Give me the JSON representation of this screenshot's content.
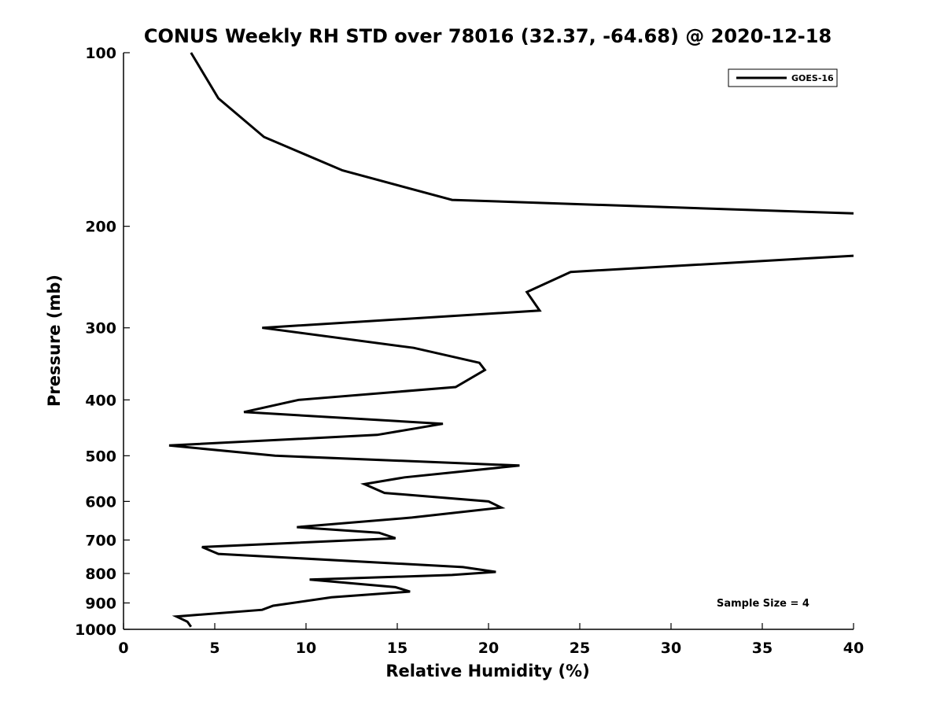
{
  "chart_data": {
    "type": "line",
    "title": "CONUS Weekly RH STD over 78016 (32.37, -64.68) @ 2020-12-18",
    "xlabel": "Relative Humidity (%)",
    "ylabel": "Pressure (mb)",
    "xlim": [
      0,
      40
    ],
    "ylim": [
      100,
      1000
    ],
    "y_scale": "log",
    "y_reversed": true,
    "grid": false,
    "legend_position": "top-right",
    "x_ticks": [
      {
        "value": 0,
        "label": "0"
      },
      {
        "value": 5,
        "label": "5"
      },
      {
        "value": 10,
        "label": "10"
      },
      {
        "value": 15,
        "label": "15"
      },
      {
        "value": 20,
        "label": "20"
      },
      {
        "value": 25,
        "label": "25"
      },
      {
        "value": 30,
        "label": "30"
      },
      {
        "value": 35,
        "label": "35"
      },
      {
        "value": 40,
        "label": "40"
      }
    ],
    "y_ticks": [
      {
        "value": 100,
        "label": "100"
      },
      {
        "value": 200,
        "label": "200"
      },
      {
        "value": 300,
        "label": "300"
      },
      {
        "value": 400,
        "label": "400"
      },
      {
        "value": 500,
        "label": "500"
      },
      {
        "value": 600,
        "label": "600"
      },
      {
        "value": 700,
        "label": "700"
      },
      {
        "value": 800,
        "label": "800"
      },
      {
        "value": 900,
        "label": "900"
      },
      {
        "value": 1000,
        "label": "1000"
      }
    ],
    "series": [
      {
        "name": "GOES-16",
        "color": "#000000",
        "points": [
          [
            3.7,
            100
          ],
          [
            5.2,
            120
          ],
          [
            7.7,
            140
          ],
          [
            12,
            160
          ],
          [
            18,
            180
          ],
          [
            40,
            190
          ],
          [
            null,
            210
          ],
          [
            40,
            225
          ],
          [
            24.5,
            240
          ],
          [
            22.1,
            260
          ],
          [
            22.8,
            280
          ],
          [
            7.6,
            300
          ],
          [
            15.9,
            325
          ],
          [
            19.5,
            345
          ],
          [
            19.8,
            355
          ],
          [
            18.2,
            380
          ],
          [
            9.6,
            400
          ],
          [
            6.6,
            420
          ],
          [
            17.5,
            440
          ],
          [
            13.9,
            460
          ],
          [
            2.5,
            480
          ],
          [
            8.3,
            500
          ],
          [
            21.7,
            520
          ],
          [
            15.4,
            545
          ],
          [
            13.2,
            560
          ],
          [
            14.3,
            580
          ],
          [
            20.0,
            600
          ],
          [
            20.7,
            615
          ],
          [
            15.8,
            640
          ],
          [
            9.5,
            665
          ],
          [
            14.0,
            680
          ],
          [
            14.9,
            695
          ],
          [
            4.3,
            720
          ],
          [
            5.2,
            740
          ],
          [
            18.6,
            780
          ],
          [
            20.4,
            795
          ],
          [
            18.0,
            805
          ],
          [
            10.2,
            820
          ],
          [
            14.9,
            845
          ],
          [
            15.7,
            860
          ],
          [
            11.4,
            880
          ],
          [
            8.2,
            910
          ],
          [
            7.6,
            925
          ],
          [
            2.9,
            950
          ],
          [
            3.5,
            970
          ],
          [
            3.7,
            990
          ]
        ]
      }
    ],
    "annotations": [
      {
        "text": "Sample Size = 4"
      }
    ]
  }
}
